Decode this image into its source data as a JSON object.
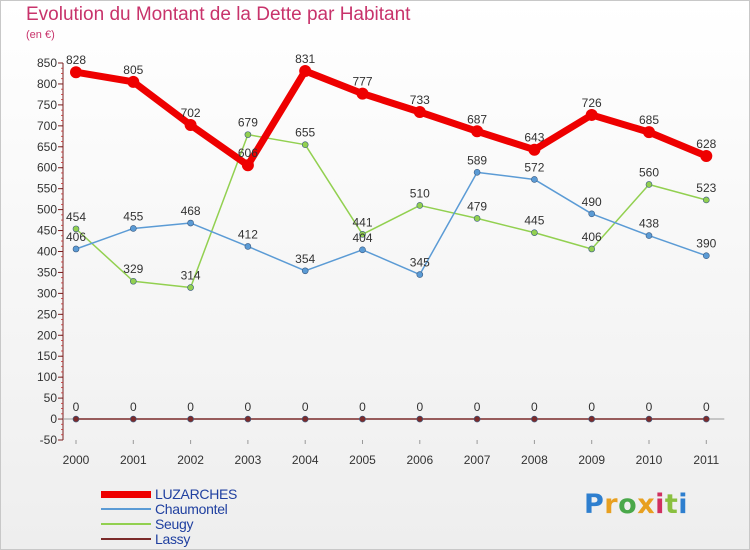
{
  "title": "Evolution du Montant de la Dette par Habitant",
  "unit_label": "(en €)",
  "logo": {
    "text": "Proxiti",
    "letters": [
      {
        "ch": "P",
        "color": "#2e7fcf"
      },
      {
        "ch": "r",
        "color": "#e8a020"
      },
      {
        "ch": "o",
        "color": "#4aa84a"
      },
      {
        "ch": "x",
        "color": "#e8a020"
      },
      {
        "ch": "i",
        "color": "#d03060"
      },
      {
        "ch": "t",
        "color": "#8ac040"
      },
      {
        "ch": "i",
        "color": "#2e7fcf"
      }
    ]
  },
  "chart_data": {
    "type": "line",
    "title": "Evolution du Montant de la Dette par Habitant",
    "ylabel": "(en €)",
    "categories": [
      "2000",
      "2001",
      "2002",
      "2003",
      "2004",
      "2005",
      "2006",
      "2007",
      "2008",
      "2009",
      "2010",
      "2011"
    ],
    "ylim": [
      -50,
      850
    ],
    "yticks": [
      -50,
      0,
      50,
      100,
      150,
      200,
      250,
      300,
      350,
      400,
      450,
      500,
      550,
      600,
      650,
      700,
      750,
      800,
      850
    ],
    "grid": false,
    "legend": "bottom-left",
    "series": [
      {
        "name": "LUZARCHES",
        "color": "#ee0000",
        "values": [
          828,
          805,
          702,
          606,
          831,
          777,
          733,
          687,
          643,
          726,
          685,
          628
        ]
      },
      {
        "name": "Chaumontel",
        "color": "#5b9bd5",
        "values": [
          406,
          455,
          468,
          412,
          354,
          404,
          345,
          589,
          572,
          490,
          438,
          390
        ]
      },
      {
        "name": "Seugy",
        "color": "#92d050",
        "values": [
          454,
          329,
          314,
          679,
          655,
          441,
          510,
          479,
          445,
          406,
          560,
          523
        ]
      },
      {
        "name": "Lassy",
        "color": "#7b2b2b",
        "values": [
          0,
          0,
          0,
          0,
          0,
          0,
          0,
          0,
          0,
          0,
          0,
          0
        ]
      }
    ]
  }
}
